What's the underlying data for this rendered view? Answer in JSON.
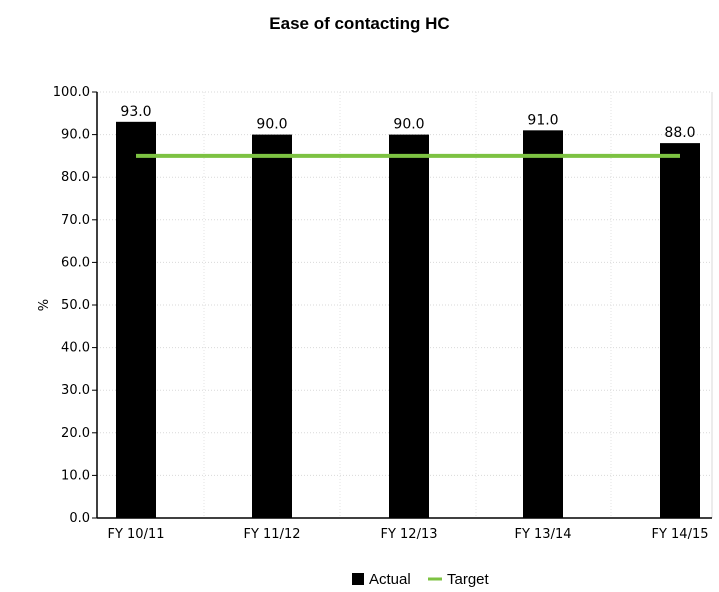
{
  "chart_data": {
    "type": "bar",
    "title": "Ease of contacting HC",
    "xlabel": "",
    "ylabel": "%",
    "categories": [
      "FY 10/11",
      "FY 11/12",
      "FY 12/13",
      "FY 13/14",
      "FY 14/15"
    ],
    "series": [
      {
        "name": "Actual",
        "type": "bar",
        "values": [
          93.0,
          90.0,
          90.0,
          91.0,
          88.0
        ],
        "color": "#000000"
      },
      {
        "name": "Target",
        "type": "line",
        "values": [
          85.0,
          85.0,
          85.0,
          85.0,
          85.0
        ],
        "color": "#7dc242"
      }
    ],
    "data_labels": [
      "93.0",
      "90.0",
      "90.0",
      "91.0",
      "88.0"
    ],
    "yticks": [
      "0.0",
      "10.0",
      "20.0",
      "30.0",
      "40.0",
      "50.0",
      "60.0",
      "70.0",
      "80.0",
      "90.0",
      "100.0"
    ],
    "ylim": [
      0,
      100
    ],
    "grid": true,
    "legend_position": "bottom"
  }
}
